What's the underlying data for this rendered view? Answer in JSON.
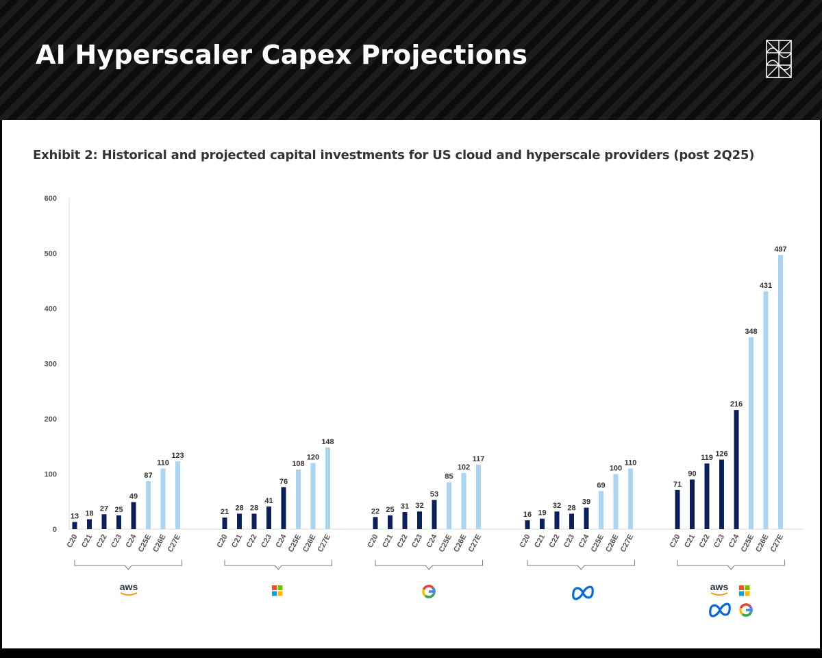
{
  "header": {
    "title": "AI Hyperscaler Capex Projections",
    "logo_icon": "geometric-mark-icon"
  },
  "exhibit": {
    "title": "Exhibit 2: Historical and projected capital investments for US cloud and hyperscale providers (post 2Q25)"
  },
  "colors": {
    "historical": "#0b1f5c",
    "projected": "#a9d4f2",
    "axis_text": "#555555"
  },
  "chart_data": {
    "type": "bar",
    "ylim": [
      0,
      600
    ],
    "yticks": [
      0,
      100,
      200,
      300,
      400,
      500,
      600
    ],
    "categories": [
      "C20",
      "C21",
      "C22",
      "C23",
      "C24",
      "C25E",
      "C26E",
      "C27E"
    ],
    "projected_categories": [
      "C25E",
      "C26E",
      "C27E"
    ],
    "groups": [
      {
        "name": "aws",
        "logo": "aws-logo-icon",
        "values": [
          13,
          18,
          27,
          25,
          49,
          87,
          110,
          123
        ]
      },
      {
        "name": "microsoft",
        "logo": "microsoft-logo-icon",
        "values": [
          21,
          28,
          28,
          41,
          76,
          108,
          120,
          148
        ]
      },
      {
        "name": "google",
        "logo": "google-logo-icon",
        "values": [
          22,
          25,
          31,
          32,
          53,
          85,
          102,
          117
        ]
      },
      {
        "name": "meta",
        "logo": "meta-logo-icon",
        "values": [
          16,
          19,
          32,
          28,
          39,
          69,
          100,
          110
        ]
      },
      {
        "name": "total",
        "logo": "combined-logos-icon",
        "values": [
          71,
          90,
          119,
          126,
          216,
          348,
          431,
          497
        ]
      }
    ],
    "logo_text": {
      "aws": "aws"
    }
  }
}
